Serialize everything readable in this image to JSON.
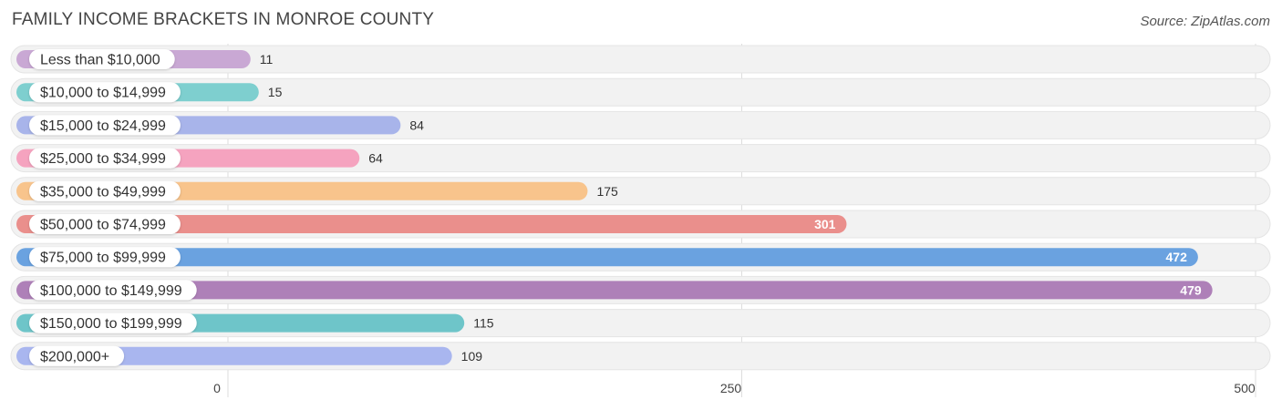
{
  "title": "FAMILY INCOME BRACKETS IN MONROE COUNTY",
  "source": "Source: ZipAtlas.com",
  "chart_data": {
    "type": "bar",
    "orientation": "horizontal",
    "title": "FAMILY INCOME BRACKETS IN MONROE COUNTY",
    "xlabel": "",
    "ylabel": "",
    "xlim": [
      0,
      500
    ],
    "ticks": [
      0,
      250,
      500
    ],
    "tick_labels": [
      "0",
      "250",
      "500"
    ],
    "grid": true,
    "categories": [
      "Less than $10,000",
      "$10,000 to $14,999",
      "$15,000 to $24,999",
      "$25,000 to $34,999",
      "$35,000 to $49,999",
      "$50,000 to $74,999",
      "$75,000 to $99,999",
      "$100,000 to $149,999",
      "$150,000 to $199,999",
      "$200,000+"
    ],
    "values": [
      11,
      15,
      84,
      64,
      175,
      301,
      472,
      479,
      115,
      109
    ],
    "value_labels": [
      "11",
      "15",
      "84",
      "64",
      "175",
      "301",
      "472",
      "479",
      "115",
      "109"
    ],
    "colors": [
      "#c9a8d4",
      "#7ecfcf",
      "#a8b4ea",
      "#f5a3bf",
      "#f8c48c",
      "#ea8f8c",
      "#6aa2e0",
      "#ae80b8",
      "#6ec5c9",
      "#a9b6ef"
    ]
  }
}
